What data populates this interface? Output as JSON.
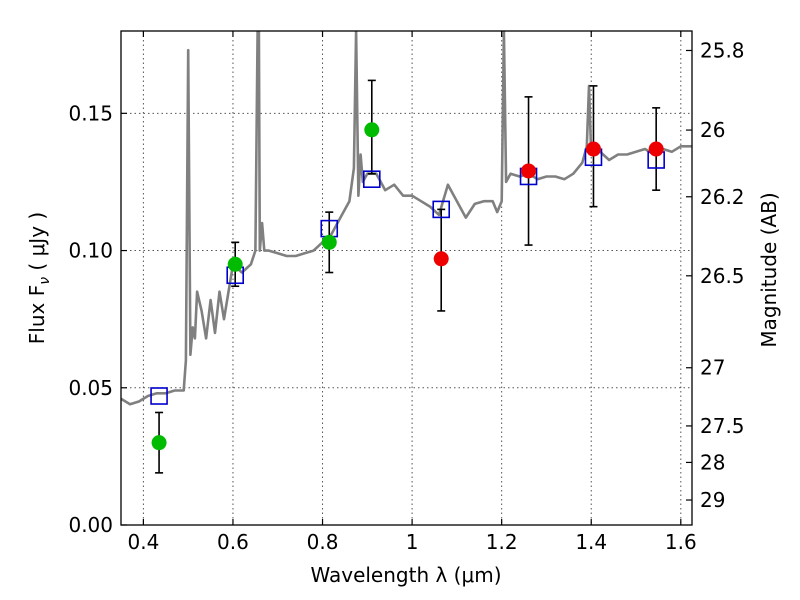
{
  "chart_data": {
    "type": "scatter",
    "xlabel": "Wavelength  λ (μm)",
    "ylabel": "Flux  F",
    "ylabel_sub": "ν",
    "ylabel_unit": " ( μJy )",
    "y2label": "Magnitude (AB)",
    "xlim": [
      0.35,
      1.625
    ],
    "ylim": [
      0.0,
      0.18
    ],
    "grid": true,
    "xticks": [
      0.4,
      0.6,
      0.8,
      1.0,
      1.2,
      1.4,
      1.6
    ],
    "xtick_labels": [
      "0.4",
      "0.6",
      "0.8",
      "1",
      "1.2",
      "1.4",
      "1.6"
    ],
    "yticks": [
      0.0,
      0.05,
      0.1,
      0.15
    ],
    "ytick_labels": [
      "0.00",
      "0.05",
      "0.10",
      "0.15"
    ],
    "y2ticks": [
      {
        "label": "25.8",
        "flux": 0.1729
      },
      {
        "label": "26",
        "flux": 0.1439
      },
      {
        "label": "26.2",
        "flux": 0.1196
      },
      {
        "label": "26.5",
        "flux": 0.0908
      },
      {
        "label": "27",
        "flux": 0.0573
      },
      {
        "label": "27.5",
        "flux": 0.0361
      },
      {
        "label": "28",
        "flux": 0.0228
      },
      {
        "label": "29",
        "flux": 0.0091
      }
    ],
    "series": [
      {
        "kind": "model_spectrum",
        "color": "#808080",
        "x": [
          0.35,
          0.37,
          0.39,
          0.41,
          0.43,
          0.45,
          0.47,
          0.49,
          0.495,
          0.5,
          0.505,
          0.51,
          0.515,
          0.52,
          0.53,
          0.54,
          0.55,
          0.56,
          0.57,
          0.58,
          0.6,
          0.62,
          0.64,
          0.65,
          0.655,
          0.658,
          0.66,
          0.665,
          0.67,
          0.68,
          0.7,
          0.72,
          0.74,
          0.76,
          0.78,
          0.8,
          0.82,
          0.84,
          0.86,
          0.87,
          0.875,
          0.88,
          0.885,
          0.89,
          0.9,
          0.91,
          0.92,
          0.94,
          0.96,
          0.98,
          1.0,
          1.02,
          1.04,
          1.06,
          1.08,
          1.1,
          1.12,
          1.14,
          1.16,
          1.18,
          1.19,
          1.2,
          1.205,
          1.21,
          1.22,
          1.24,
          1.26,
          1.28,
          1.3,
          1.32,
          1.34,
          1.36,
          1.38,
          1.39,
          1.395,
          1.4,
          1.42,
          1.44,
          1.46,
          1.48,
          1.5,
          1.52,
          1.54,
          1.56,
          1.58,
          1.6,
          1.625
        ],
        "y": [
          0.046,
          0.044,
          0.045,
          0.047,
          0.048,
          0.048,
          0.049,
          0.049,
          0.06,
          0.173,
          0.062,
          0.072,
          0.068,
          0.085,
          0.078,
          0.068,
          0.082,
          0.07,
          0.085,
          0.075,
          0.095,
          0.092,
          0.095,
          0.1,
          0.18,
          0.18,
          0.1,
          0.11,
          0.1,
          0.1,
          0.099,
          0.098,
          0.098,
          0.099,
          0.1,
          0.103,
          0.106,
          0.112,
          0.118,
          0.13,
          0.18,
          0.12,
          0.135,
          0.125,
          0.128,
          0.128,
          0.128,
          0.122,
          0.124,
          0.12,
          0.12,
          0.118,
          0.116,
          0.113,
          0.124,
          0.118,
          0.112,
          0.117,
          0.118,
          0.118,
          0.114,
          0.118,
          0.18,
          0.125,
          0.128,
          0.127,
          0.128,
          0.126,
          0.127,
          0.127,
          0.126,
          0.128,
          0.132,
          0.138,
          0.16,
          0.135,
          0.136,
          0.133,
          0.135,
          0.135,
          0.136,
          0.137,
          0.135,
          0.137,
          0.136,
          0.138,
          0.138
        ]
      },
      {
        "kind": "model_photometry",
        "marker": "open-square",
        "color": "#0000cc",
        "x": [
          0.435,
          0.605,
          0.815,
          0.91,
          1.065,
          1.26,
          1.405,
          1.545
        ],
        "y": [
          0.047,
          0.091,
          0.108,
          0.126,
          0.115,
          0.127,
          0.134,
          0.133
        ]
      },
      {
        "kind": "observed_optical",
        "marker": "filled-circle",
        "color": "#00bb00",
        "x": [
          0.435,
          0.605,
          0.815,
          0.91
        ],
        "y": [
          0.03,
          0.095,
          0.103,
          0.144
        ],
        "yerr_low": [
          0.011,
          0.008,
          0.011,
          0.016
        ],
        "yerr_high": [
          0.011,
          0.008,
          0.011,
          0.018
        ]
      },
      {
        "kind": "observed_nir",
        "marker": "filled-circle",
        "color": "#ee0000",
        "x": [
          1.065,
          1.26,
          1.405,
          1.545
        ],
        "y": [
          0.097,
          0.129,
          0.137,
          0.137
        ],
        "yerr_low": [
          0.019,
          0.027,
          0.021,
          0.015
        ],
        "yerr_high": [
          0.018,
          0.027,
          0.023,
          0.015
        ]
      }
    ]
  }
}
